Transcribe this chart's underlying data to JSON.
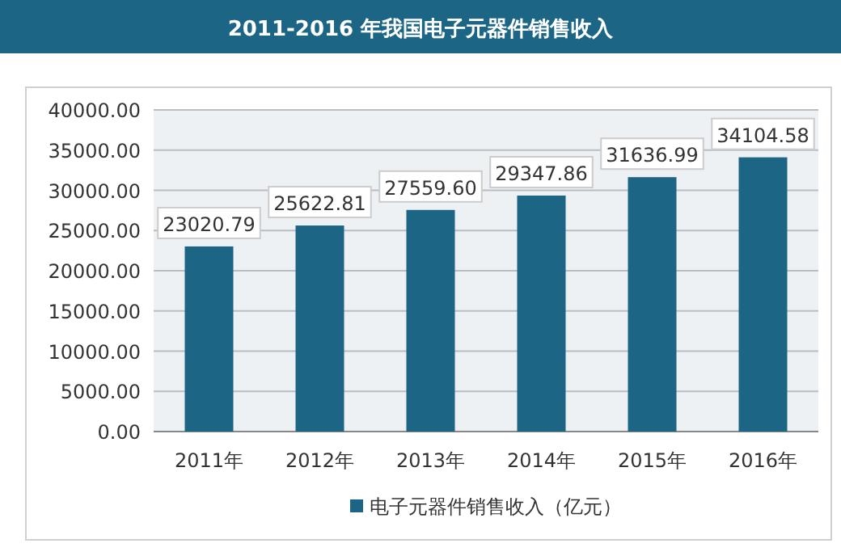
{
  "chart_data": {
    "type": "bar",
    "title": "2011-2016 年我国电子元器件销售收入",
    "categories": [
      "2011年",
      "2012年",
      "2013年",
      "2014年",
      "2015年",
      "2016年"
    ],
    "series": [
      {
        "name": "电子元器件销售收入（亿元）",
        "color": "#1c6585",
        "values": [
          23020.79,
          25622.81,
          27559.6,
          29347.86,
          31636.99,
          34104.58
        ],
        "value_labels": [
          "23020.79",
          "25622.81",
          "27559.60",
          "29347.86",
          "31636.99",
          "34104.58"
        ]
      }
    ],
    "ylim": [
      0,
      40000
    ],
    "yticks": [
      {
        "value": 0,
        "label": "0.00"
      },
      {
        "value": 5000,
        "label": "5000.00"
      },
      {
        "value": 10000,
        "label": "10000.00"
      },
      {
        "value": 15000,
        "label": "15000.00"
      },
      {
        "value": 20000,
        "label": "20000.00"
      },
      {
        "value": 25000,
        "label": "25000.00"
      },
      {
        "value": 30000,
        "label": "30000.00"
      },
      {
        "value": 35000,
        "label": "35000.00"
      },
      {
        "value": 40000,
        "label": "40000.00"
      }
    ],
    "grid": "y",
    "legend": "bottom"
  }
}
